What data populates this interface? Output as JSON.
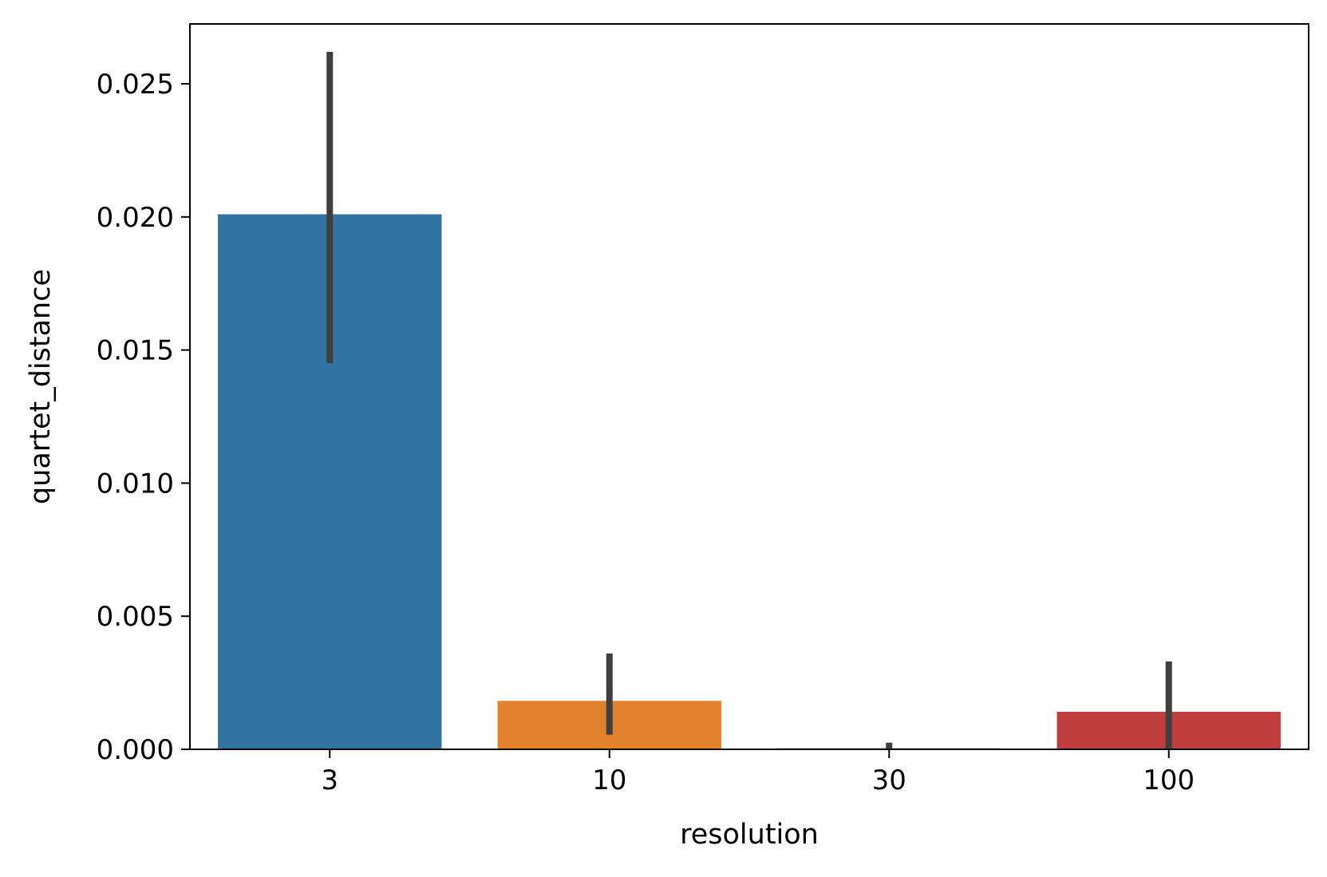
{
  "chart_data": {
    "type": "bar",
    "title": "",
    "xlabel": "resolution",
    "ylabel": "quartet_distance",
    "categories": [
      "3",
      "10",
      "30",
      "100"
    ],
    "values": [
      0.0201,
      0.00182,
      4e-05,
      0.00141
    ],
    "error_bars": [
      [
        0.0145,
        0.0262
      ],
      [
        0.00055,
        0.0036
      ],
      [
        0.0,
        0.00025
      ],
      [
        0.0,
        0.0033
      ]
    ],
    "colors": [
      "#3274a1",
      "#e1812c",
      "#3a923a",
      "#c03d3e"
    ],
    "error_color": "#3f3f3f",
    "ylim": [
      0,
      0.02725
    ],
    "yticks": [
      0.0,
      0.005,
      0.01,
      0.015,
      0.02,
      0.025
    ],
    "ytick_labels": [
      "0.000",
      "0.005",
      "0.010",
      "0.015",
      "0.020",
      "0.025"
    ],
    "grid": false,
    "legend": false
  }
}
